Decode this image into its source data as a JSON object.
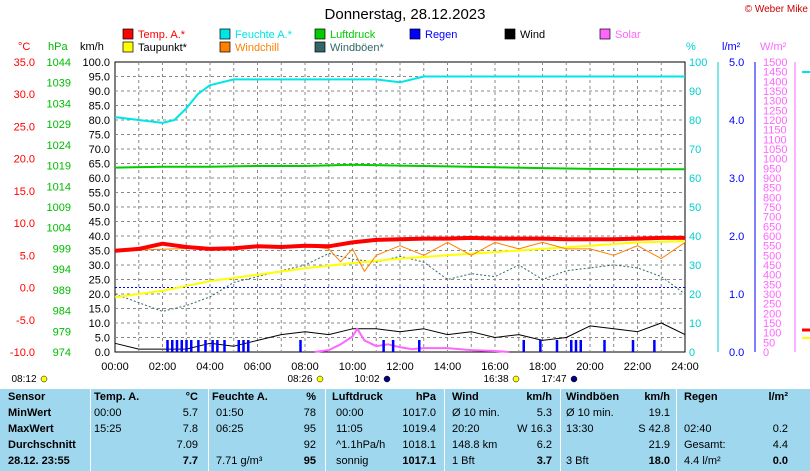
{
  "title": "Donnerstag, 28.12.2023",
  "copyright": "© Weber Mike",
  "colors": {
    "temp": "#ff0000",
    "humidity": "#00e5e5",
    "pressure": "#00cc00",
    "wind": "#000000",
    "solar": "#ff66ff",
    "dewpoint": "#ffff00",
    "windchill": "#ff8000",
    "gusts": "#336666",
    "rain": "#0000ff",
    "table_bg": "#9fd7ee"
  },
  "legend": [
    {
      "label": "Temp. A.*",
      "color": "#ff0000"
    },
    {
      "label": "Feuchte A.*",
      "color": "#00e5e5"
    },
    {
      "label": "Luftdruck",
      "color": "#00cc00"
    },
    {
      "label": "Regen",
      "color": "#0000ff"
    },
    {
      "label": "Wind",
      "color": "#000000"
    },
    {
      "label": "Solar",
      "color": "#ff66ff"
    },
    {
      "label": "Taupunkt*",
      "color": "#ffff00"
    },
    {
      "label": "Windchill",
      "color": "#ff8000"
    },
    {
      "label": "Windböen*",
      "color": "#336666"
    }
  ],
  "axis_units": {
    "temp": "°C",
    "hpa": "hPa",
    "kmh": "km/h",
    "pct": "%",
    "rain": "l/m²",
    "solar": "W/m²"
  },
  "axis_ticks": {
    "temp": [
      "35.0",
      "30.0",
      "25.0",
      "20.0",
      "15.0",
      "10.0",
      "5.0",
      "0.0",
      "-5.0",
      "-10.0"
    ],
    "hpa": [
      "1044",
      "1039",
      "1034",
      "1029",
      "1024",
      "1019",
      "1014",
      "1009",
      "1004",
      "999",
      "994",
      "989",
      "984",
      "979",
      "974"
    ],
    "kmh": [
      "100.0",
      "95.0",
      "90.0",
      "85.0",
      "80.0",
      "75.0",
      "70.0",
      "65.0",
      "60.0",
      "55.0",
      "50.0",
      "45.0",
      "40.0",
      "35.0",
      "30.0",
      "25.0",
      "20.0",
      "15.0",
      "10.0",
      "5.0",
      "0.0"
    ],
    "pct": [
      "100",
      "90",
      "80",
      "70",
      "60",
      "50",
      "40",
      "30",
      "20",
      "10",
      "0"
    ],
    "rain": [
      "5.0",
      "4.0",
      "3.0",
      "2.0",
      "1.0",
      "0.0"
    ],
    "solar": [
      "1500",
      "1450",
      "1400",
      "1350",
      "1300",
      "1250",
      "1200",
      "1150",
      "1100",
      "1050",
      "1000",
      "950",
      "900",
      "850",
      "800",
      "750",
      "700",
      "650",
      "600",
      "550",
      "500",
      "450",
      "400",
      "350",
      "300",
      "250",
      "200",
      "150",
      "100",
      "50",
      "0"
    ]
  },
  "x_ticks": [
    "00:00",
    "02:00",
    "04:00",
    "06:00",
    "08:00",
    "10:00",
    "12:00",
    "14:00",
    "16:00",
    "18:00",
    "20:00",
    "22:00",
    "24:00"
  ],
  "sun_times": [
    "08:12",
    "08:26",
    "10:02",
    "16:38",
    "17:47"
  ],
  "chart_data": {
    "type": "line",
    "title": "Donnerstag, 28.12.2023",
    "x_unit": "hours",
    "x_range": [
      0,
      24
    ],
    "series": [
      {
        "name": "Temp. A.*",
        "axis": "°C",
        "x": [
          0,
          1,
          2,
          3,
          4,
          5,
          6,
          7,
          8,
          9,
          10,
          11,
          12,
          13,
          14,
          15,
          16,
          17,
          18,
          19,
          20,
          21,
          22,
          23,
          24
        ],
        "values": [
          5.7,
          6.0,
          6.8,
          6.3,
          6.0,
          6.1,
          6.4,
          6.3,
          6.5,
          6.4,
          7.0,
          7.4,
          7.5,
          7.6,
          7.6,
          7.7,
          7.6,
          7.6,
          7.6,
          7.5,
          7.5,
          7.5,
          7.6,
          7.7,
          7.7
        ]
      },
      {
        "name": "Feuchte A.*",
        "axis": "%",
        "x": [
          0,
          1,
          2,
          2.5,
          3,
          3.5,
          4,
          5,
          6,
          8,
          10,
          11,
          12,
          13,
          14,
          16,
          18,
          20,
          22,
          24
        ],
        "values": [
          81,
          80,
          79,
          80,
          84,
          89,
          92,
          94,
          94,
          94,
          94,
          94,
          93,
          95,
          95,
          95,
          95,
          95,
          95,
          95
        ]
      },
      {
        "name": "Luftdruck",
        "axis": "hPa",
        "x": [
          0,
          2,
          4,
          6,
          8,
          10,
          12,
          14,
          16,
          18,
          20,
          22,
          24
        ],
        "values": [
          1018.5,
          1018.7,
          1018.7,
          1018.9,
          1018.9,
          1019.2,
          1019.0,
          1018.8,
          1018.6,
          1018.4,
          1018.2,
          1018.1,
          1018.1
        ]
      },
      {
        "name": "Taupunkt*",
        "axis": "°C",
        "x": [
          0,
          2,
          4,
          6,
          8,
          10,
          12,
          14,
          16,
          18,
          20,
          22,
          24
        ],
        "values": [
          -1.5,
          -0.5,
          1.0,
          2.0,
          3.0,
          3.8,
          4.5,
          5.0,
          5.5,
          6.0,
          6.5,
          7.0,
          7.2
        ]
      },
      {
        "name": "Windchill",
        "axis": "°C",
        "x": [
          0,
          6,
          8,
          9,
          9.5,
          10,
          10.5,
          11,
          12,
          13,
          14,
          15,
          16,
          17,
          18,
          19,
          20,
          21,
          22,
          23,
          24
        ],
        "values": [
          5.7,
          6.4,
          6.5,
          6.0,
          4.0,
          6.0,
          2.5,
          5.0,
          6.5,
          5.0,
          7.0,
          5.0,
          7.0,
          6.0,
          7.0,
          6.0,
          6.0,
          5.0,
          6.5,
          4.5,
          7.0
        ]
      },
      {
        "name": "Windböen*",
        "axis": "km/h",
        "x": [
          0,
          1,
          2,
          3,
          4,
          5,
          6,
          7,
          8,
          9,
          10,
          11,
          12,
          13,
          14,
          15,
          16,
          17,
          18,
          19,
          20,
          21,
          22,
          23,
          24
        ],
        "values": [
          20,
          17,
          14,
          16,
          19,
          24,
          26,
          28,
          30,
          34,
          32,
          31,
          33,
          31,
          25,
          27,
          26,
          30,
          25,
          28,
          29,
          30,
          29,
          26,
          20
        ]
      },
      {
        "name": "Wind",
        "axis": "km/h",
        "x": [
          0,
          1,
          2,
          3,
          4,
          5,
          6,
          7,
          8,
          9,
          10,
          11,
          12,
          13,
          14,
          15,
          16,
          17,
          18,
          19,
          20,
          21,
          22,
          23,
          24
        ],
        "values": [
          3,
          1,
          1,
          1,
          3,
          2,
          4,
          6,
          7,
          6,
          8,
          8,
          7,
          8,
          6,
          7,
          5,
          6,
          4,
          5,
          9,
          8,
          7,
          10,
          6
        ]
      },
      {
        "name": "Solar",
        "axis": "W/m²",
        "x": [
          8.4,
          9,
          9.5,
          10,
          10.2,
          10.5,
          11,
          11.5,
          12,
          12.5,
          13,
          14,
          15,
          16,
          16.6
        ],
        "values": [
          0,
          10,
          40,
          80,
          120,
          60,
          30,
          40,
          25,
          15,
          20,
          20,
          10,
          5,
          0
        ]
      }
    ],
    "rain_bars_hours": [
      2.2,
      2.4,
      2.6,
      2.8,
      3.0,
      3.2,
      3.5,
      3.8,
      4.1,
      4.3,
      4.6,
      5.2,
      5.4,
      5.6,
      7.8,
      11.3,
      11.7,
      12.8,
      17.2,
      17.9,
      18.6,
      19.2,
      19.4,
      19.6,
      20.6,
      21.8,
      22.7
    ],
    "y_ranges": {
      "temp": [
        -10,
        35
      ],
      "hpa": [
        974,
        1044
      ],
      "kmh": [
        0,
        100
      ],
      "pct": [
        0,
        100
      ],
      "rain": [
        0,
        5
      ],
      "solar": [
        0,
        1500
      ]
    },
    "grid": true
  },
  "stats": {
    "headers": [
      "Sensor",
      "Temp. A.",
      "°C",
      "Feuchte A.",
      "%",
      "Luftdruck",
      "hPa",
      "Wind",
      "km/h",
      "Windböen",
      "km/h",
      "Regen",
      "l/m²"
    ],
    "rows": [
      {
        "label": "MinWert",
        "c": [
          "00:00",
          "5.7",
          "01:50",
          "78",
          "00:00",
          "1017.0",
          "Ø 10 min.",
          "5.3",
          "Ø 10 min.",
          "19.1",
          "",
          ""
        ]
      },
      {
        "label": "MaxWert",
        "c": [
          "15:25",
          "7.8",
          "06:25",
          "95",
          "11:05",
          "1019.4",
          "20:20",
          "W 16.3",
          "13:30",
          "S 42.8",
          "02:40",
          "0.2"
        ]
      },
      {
        "label": "Durchschnitt",
        "c": [
          "",
          "7.09",
          "",
          "92",
          "^1.1hPa/h",
          "1018.1",
          "148.8 km",
          "6.2",
          "",
          "21.9",
          "Gesamt:",
          "4.4"
        ]
      },
      {
        "label": "28.12. 23:55",
        "c": [
          "",
          "7.7",
          "7.71 g/m³",
          "95",
          "sonnig",
          "1017.1",
          "1 Bft",
          "3.7",
          "3 Bft",
          "18.0",
          "4.4 l/m²",
          "0.0"
        ]
      }
    ]
  }
}
